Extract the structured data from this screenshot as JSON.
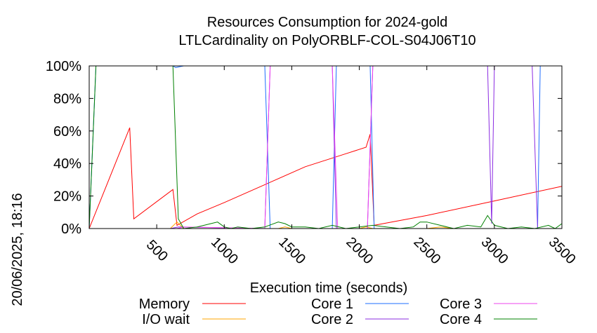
{
  "chart_data": {
    "type": "line",
    "title": "Resources Consumption for 2024-gold",
    "subtitle": "LTLCardinality on PolyORBLF-COL-S04J06T10",
    "xlabel": "Execution time (seconds)",
    "ylabel": "",
    "side_label": "20/06/2025, 18:16",
    "xlim": [
      0,
      3500
    ],
    "ylim": [
      0,
      100
    ],
    "x_ticks": [
      500,
      1000,
      1500,
      2000,
      2500,
      3000,
      3500
    ],
    "y_ticks": [
      "0%",
      "20%",
      "40%",
      "60%",
      "80%",
      "100%"
    ],
    "y_tick_values": [
      0,
      20,
      40,
      60,
      80,
      100
    ],
    "grid": false,
    "legend_placement": "bottom",
    "series": [
      {
        "name": "Memory",
        "color": "#ff0000",
        "x": [
          0,
          300,
          330,
          620,
          650,
          800,
          1000,
          1300,
          1600,
          1900,
          2050,
          2080,
          2110,
          2500,
          3000,
          3500
        ],
        "y": [
          0,
          62,
          6,
          24,
          2,
          9,
          16,
          27,
          38,
          46,
          50,
          58,
          2,
          8,
          17,
          26
        ]
      },
      {
        "name": "I/O wait",
        "color": "#ffa500",
        "x": [
          0,
          600,
          650,
          700,
          800,
          1400,
          1450,
          1500,
          2000,
          2050,
          2100,
          2500,
          2600,
          2700,
          3500
        ],
        "y": [
          0,
          0,
          4,
          0,
          0,
          0,
          1,
          0,
          0,
          1,
          0,
          0,
          1,
          0,
          0
        ]
      },
      {
        "name": "Core 1",
        "color": "#1e6cff",
        "x": [
          0,
          50,
          620,
          640,
          700,
          1300,
          1340,
          1800,
          1830,
          2080,
          2110,
          3320,
          3340,
          3500
        ],
        "y": [
          0,
          100,
          100,
          99,
          100,
          100,
          0,
          0,
          100,
          100,
          0,
          0,
          100,
          100
        ]
      },
      {
        "name": "Core 2",
        "color": "#8b2be2",
        "x": [
          0,
          600,
          660,
          1300,
          1340,
          1800,
          1830,
          2060,
          2100,
          2950,
          2980,
          3000,
          3280,
          3320,
          3500
        ],
        "y": [
          0,
          0,
          1,
          0,
          100,
          100,
          0,
          0,
          100,
          100,
          3,
          100,
          100,
          0,
          0
        ]
      },
      {
        "name": "Core 3",
        "color": "#ee44ee",
        "x": [
          0,
          650,
          700,
          1300,
          1340,
          1800,
          1840,
          2060,
          2100,
          3500
        ],
        "y": [
          0,
          0,
          1,
          0,
          100,
          100,
          0,
          0,
          100,
          100
        ]
      },
      {
        "name": "Core 4",
        "color": "#008000",
        "x": [
          0,
          50,
          620,
          660,
          700,
          800,
          900,
          950,
          1000,
          1050,
          1100,
          1200,
          1300,
          1400,
          1450,
          1500,
          1600,
          1700,
          1800,
          1900,
          2000,
          2100,
          2200,
          2300,
          2400,
          2450,
          2500,
          2600,
          2700,
          2800,
          2900,
          2950,
          3000,
          3100,
          3200,
          3300,
          3400,
          3450,
          3500
        ],
        "y": [
          0,
          100,
          100,
          6,
          0,
          1,
          3,
          4,
          1,
          0,
          1,
          0,
          1,
          4,
          3,
          1,
          1,
          0,
          2,
          0,
          1,
          2,
          1,
          0,
          1,
          4,
          4,
          2,
          0,
          2,
          1,
          8,
          2,
          0,
          1,
          0,
          2,
          0,
          3
        ]
      }
    ]
  }
}
